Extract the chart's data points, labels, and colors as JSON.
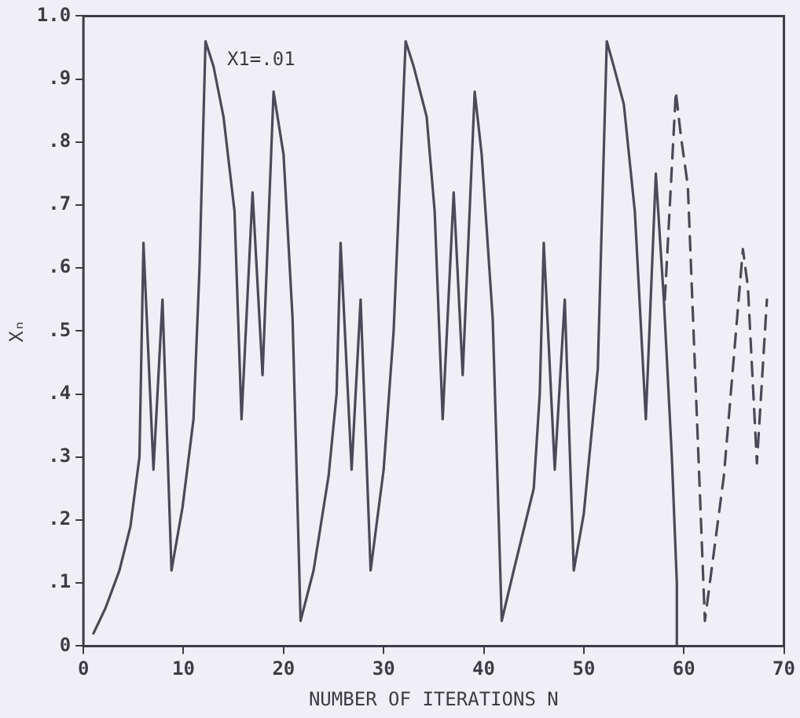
{
  "chart_data": {
    "type": "line",
    "xlabel": "NUMBER OF ITERATIONS N",
    "ylabel": "Xₙ",
    "annotations": [
      "X1=.01"
    ],
    "xlim": [
      0,
      70
    ],
    "xticks": [
      0,
      10,
      20,
      30,
      40,
      50,
      60,
      70
    ],
    "ylim": [
      0,
      1
    ],
    "yticks": [
      0,
      {
        "value": 0.1,
        "label": ".1"
      },
      {
        "value": 0.2,
        "label": ".2"
      },
      {
        "value": 0.3,
        "label": ".3"
      },
      {
        "value": 0.4,
        "label": ".4"
      },
      {
        "value": 0.5,
        "label": ".5"
      },
      {
        "value": 0.6,
        "label": ".6"
      },
      {
        "value": 0.7,
        "label": ".7"
      },
      {
        "value": 0.8,
        "label": ".8"
      },
      {
        "value": 0.9,
        "label": ".9"
      },
      {
        "value": 1,
        "label": "1.0"
      }
    ],
    "grid": false,
    "legend": false,
    "marker": "none",
    "series": [
      {
        "color": "#4a4a58",
        "line_style": "solid",
        "x": [
          1,
          2.2,
          3.6,
          4.7,
          5.6,
          6,
          7,
          7.9,
          8.8,
          9.9,
          11,
          11.6,
          12.2,
          13,
          14,
          15.1,
          15.8,
          16.9,
          17.9,
          19,
          20,
          20.9,
          21.7,
          23,
          24.5,
          25.3,
          25.7,
          26.8,
          27.7,
          28.7,
          30,
          31,
          32.2,
          33,
          34.3,
          35.1,
          35.9,
          37,
          37.9,
          39.1,
          39.8,
          40.9,
          41.8,
          43,
          45,
          45.6,
          46,
          47.1,
          48.1,
          49,
          50,
          51.4,
          52.3,
          53,
          54,
          55.1,
          56.2,
          57.2,
          58,
          58.8,
          59.3,
          59.3
        ],
        "values": [
          0.02,
          0.06,
          0.12,
          0.19,
          0.3,
          0.64,
          0.28,
          0.55,
          0.12,
          0.22,
          0.36,
          0.6,
          0.96,
          0.92,
          0.84,
          0.69,
          0.36,
          0.72,
          0.43,
          0.88,
          0.78,
          0.52,
          0.04,
          0.12,
          0.27,
          0.4,
          0.64,
          0.28,
          0.55,
          0.12,
          0.28,
          0.5,
          0.96,
          0.92,
          0.84,
          0.69,
          0.36,
          0.72,
          0.43,
          0.88,
          0.78,
          0.52,
          0.04,
          0.12,
          0.25,
          0.4,
          0.64,
          0.28,
          0.55,
          0.12,
          0.21,
          0.44,
          0.96,
          0.92,
          0.86,
          0.69,
          0.36,
          0.75,
          0.55,
          0.3,
          0.1,
          0
        ]
      },
      {
        "color": "#4a4a58",
        "line_style": "dashed",
        "x": [
          58.1,
          59.2,
          59.7,
          60.4,
          62.1,
          64,
          65.9,
          66.4,
          67.3,
          68.3
        ],
        "values": [
          0.55,
          0.88,
          0.81,
          0.73,
          0.04,
          0.27,
          0.63,
          0.57,
          0.29,
          0.55
        ]
      }
    ]
  }
}
